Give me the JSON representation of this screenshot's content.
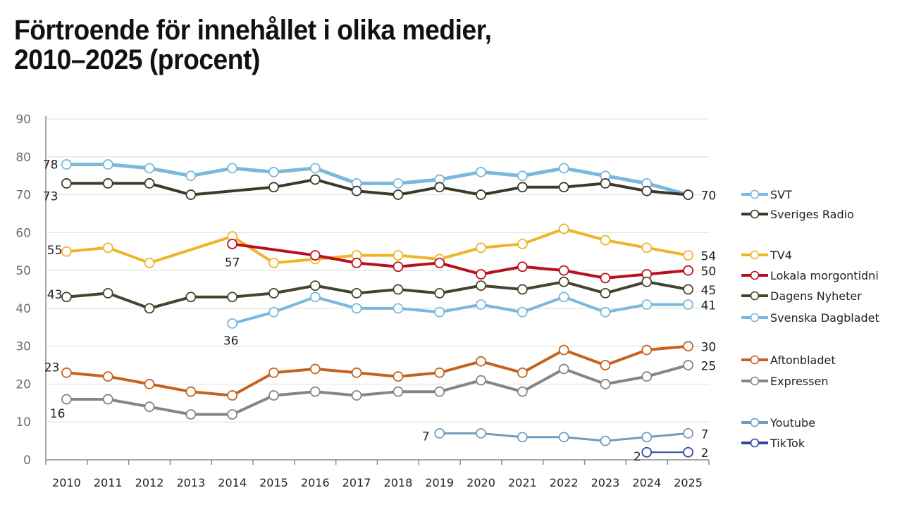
{
  "chart_data": {
    "type": "line",
    "title": "Förtroende för innehållet i olika medier, 2010–2025 (procent)",
    "title_lines": [
      "Förtroende för innehållet i olika medier,",
      "2010–2025 (procent)"
    ],
    "xlabel": "",
    "ylabel": "",
    "ylim": [
      0,
      90
    ],
    "yticks": [
      0,
      10,
      20,
      30,
      40,
      50,
      60,
      70,
      80,
      90
    ],
    "grid": true,
    "legend_position": "right",
    "categories": [
      "2010",
      "2011",
      "2012",
      "2013",
      "2014",
      "2015",
      "2016",
      "2017",
      "2018",
      "2019",
      "2020",
      "2021",
      "2022",
      "2023",
      "2024",
      "2025"
    ],
    "series": [
      {
        "name": "SVT",
        "color": "#7ab8dc",
        "width": 5,
        "values": [
          78,
          78,
          77,
          75,
          77,
          76,
          77,
          73,
          73,
          74,
          76,
          75,
          77,
          75,
          73,
          70
        ],
        "labels": {
          "first": "78",
          "last": "70"
        }
      },
      {
        "name": "Sveriges Radio",
        "color": "#3a3a2a",
        "width": 4,
        "values": [
          73,
          73,
          73,
          70,
          null,
          72,
          74,
          71,
          70,
          72,
          70,
          72,
          72,
          73,
          71,
          70
        ],
        "labels": {
          "first": "73"
        }
      },
      {
        "name": "TV4",
        "color": "#f0b429",
        "width": 4,
        "values": [
          55,
          56,
          52,
          null,
          59,
          52,
          53,
          54,
          54,
          53,
          56,
          57,
          61,
          58,
          56,
          54
        ],
        "labels": {
          "first": "55",
          "last": "54"
        }
      },
      {
        "name": "Lokala morgontidni",
        "color": "#b8101e",
        "width": 4,
        "values": [
          null,
          null,
          null,
          null,
          57,
          null,
          54,
          52,
          51,
          52,
          49,
          51,
          50,
          48,
          49,
          50
        ],
        "labels": {
          "first": "57",
          "last": "50"
        }
      },
      {
        "name": "Dagens Nyheter",
        "color": "#45442e",
        "width": 4,
        "values": [
          43,
          44,
          40,
          43,
          43,
          44,
          46,
          44,
          45,
          44,
          46,
          45,
          47,
          44,
          47,
          45
        ],
        "labels": {
          "first": "43",
          "last": "45"
        }
      },
      {
        "name": "Svenska Dagbladet",
        "color": "#7ab8dc",
        "width": 4,
        "values": [
          null,
          null,
          null,
          null,
          36,
          39,
          43,
          40,
          40,
          39,
          41,
          39,
          43,
          39,
          41,
          41
        ],
        "labels": {
          "first": "36",
          "last": "41"
        }
      },
      {
        "name": "Aftonbladet",
        "color": "#c4631f",
        "width": 4,
        "values": [
          23,
          22,
          20,
          18,
          17,
          23,
          24,
          23,
          22,
          23,
          26,
          23,
          29,
          25,
          29,
          30
        ],
        "labels": {
          "first": "23",
          "last": "30"
        }
      },
      {
        "name": "Expressen",
        "color": "#858585",
        "width": 4,
        "values": [
          16,
          16,
          14,
          12,
          12,
          17,
          18,
          17,
          18,
          18,
          21,
          18,
          24,
          20,
          22,
          25
        ],
        "labels": {
          "first": "16",
          "last": "25"
        }
      },
      {
        "name": "Youtube",
        "color": "#6f9cbf",
        "width": 3,
        "values": [
          null,
          null,
          null,
          null,
          null,
          null,
          null,
          null,
          null,
          7,
          7,
          6,
          6,
          5,
          6,
          7
        ],
        "labels": {
          "first": "7",
          "last": "7"
        }
      },
      {
        "name": "TikTok",
        "color": "#35479a",
        "width": 2,
        "values": [
          null,
          null,
          null,
          null,
          null,
          null,
          null,
          null,
          null,
          null,
          null,
          null,
          null,
          null,
          2,
          2
        ],
        "labels": {
          "first": "2",
          "last": "2"
        }
      }
    ]
  }
}
